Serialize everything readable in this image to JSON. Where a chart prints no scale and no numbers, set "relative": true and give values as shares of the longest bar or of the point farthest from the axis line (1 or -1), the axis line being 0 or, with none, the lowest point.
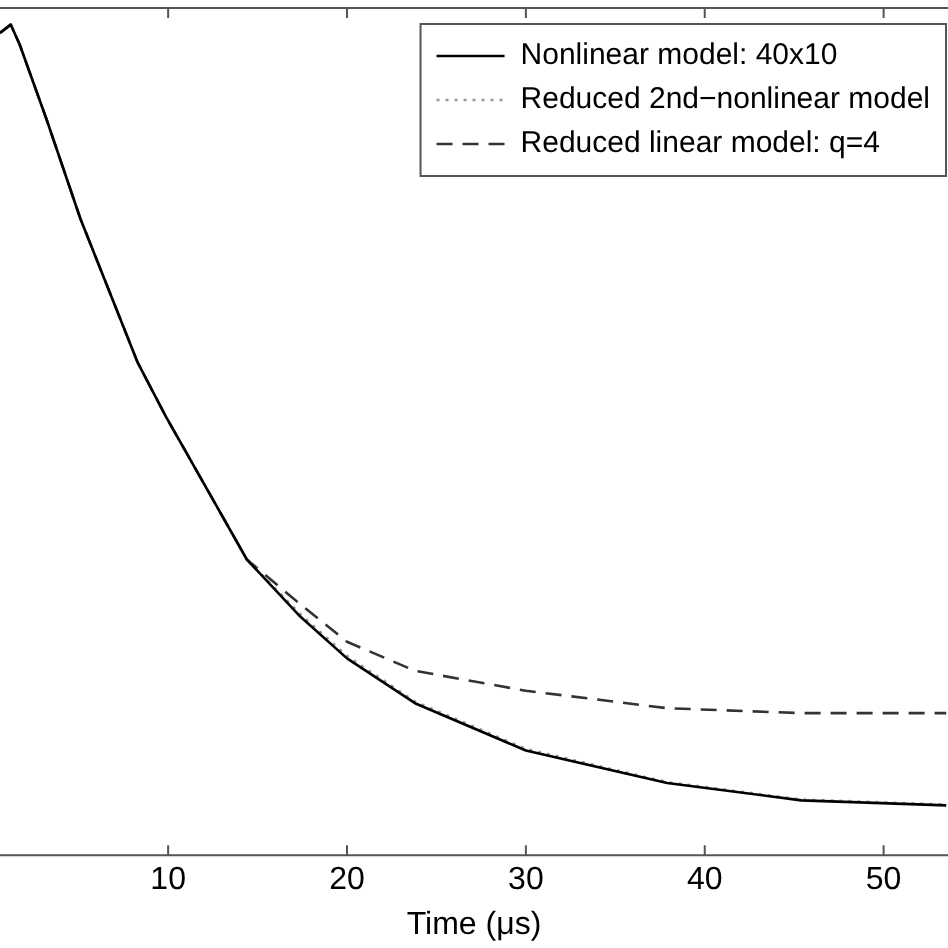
{
  "chart_data": {
    "type": "line",
    "xlabel": "Time (μs)",
    "relative": true,
    "xlim": [
      0.6,
      53.6
    ],
    "xticks": [
      10,
      20,
      30,
      40,
      50
    ],
    "legend": "top right",
    "grid": false,
    "marker": "none",
    "series": [
      {
        "name": "Nonlinear model: 40x10",
        "color": "#000000",
        "line_style": "solid",
        "x": [
          0.6,
          1.2,
          1.7,
          3.2,
          5.1,
          8.3,
          9.9,
          11.8,
          14.4,
          17.4,
          20.0,
          23.8,
          30.0,
          37.9,
          45.4,
          53.5
        ],
        "values": [
          0.99,
          1.0,
          0.976,
          0.886,
          0.766,
          0.593,
          0.527,
          0.455,
          0.356,
          0.287,
          0.237,
          0.183,
          0.126,
          0.087,
          0.066,
          0.06
        ]
      },
      {
        "name": "Reduced 2nd−nonlinear model",
        "color": "#999999",
        "line_style": "dotted",
        "x": [
          0.6,
          1.2,
          1.7,
          3.2,
          5.1,
          8.3,
          9.9,
          11.8,
          14.4,
          17.4,
          20.0,
          23.8,
          30.0,
          37.9,
          45.4,
          53.5
        ],
        "values": [
          0.99,
          1.0,
          0.976,
          0.886,
          0.766,
          0.593,
          0.527,
          0.455,
          0.356,
          0.29,
          0.24,
          0.185,
          0.128,
          0.088,
          0.067,
          0.061
        ]
      },
      {
        "name": "Reduced linear model: q=4",
        "color": "#333333",
        "line_style": "dashed",
        "x": [
          0.6,
          1.2,
          1.7,
          3.2,
          5.1,
          8.3,
          9.9,
          11.8,
          14.4,
          17.4,
          20.0,
          23.8,
          30.0,
          37.9,
          45.4,
          53.5
        ],
        "values": [
          0.99,
          1.0,
          0.976,
          0.886,
          0.766,
          0.593,
          0.527,
          0.455,
          0.356,
          0.302,
          0.257,
          0.222,
          0.198,
          0.177,
          0.171,
          0.171
        ]
      }
    ]
  }
}
